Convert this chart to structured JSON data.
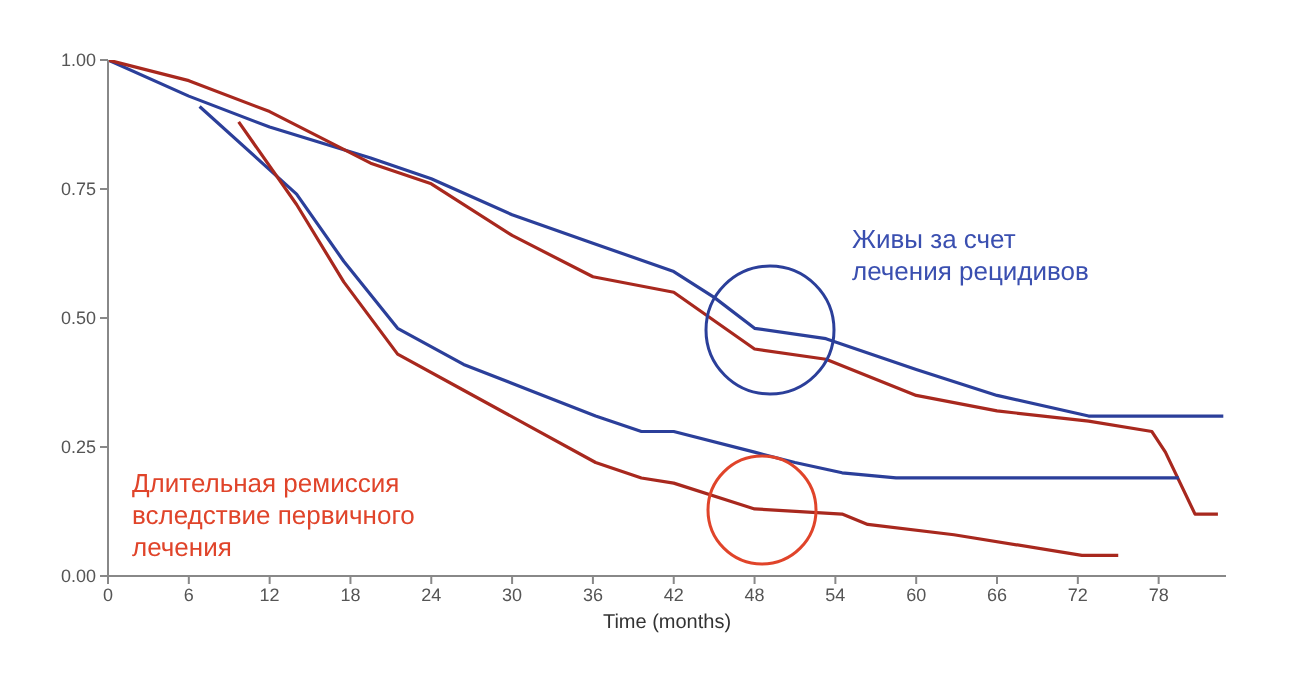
{
  "chart_data": {
    "type": "line",
    "xlabel": "Time (months)",
    "annotations": [
      "Живы за счет лечения рецидивов",
      "Длительная ремиссия вследствие первичного лечения"
    ],
    "xlim": [
      0,
      83
    ],
    "xticks": [
      0,
      6,
      12,
      18,
      24,
      30,
      36,
      42,
      48,
      54,
      60,
      66,
      72,
      78
    ],
    "ylim": [
      0,
      1
    ],
    "yticks": [
      {
        "value": 0,
        "label": "0.00"
      },
      {
        "value": 0.25,
        "label": "0.25"
      },
      {
        "value": 0.5,
        "label": "0.50"
      },
      {
        "value": 0.75,
        "label": "0.75"
      },
      {
        "value": 1,
        "label": "1.00"
      }
    ],
    "grid": false,
    "series": [
      {
        "color": "#2b3f9a",
        "x": [
          0,
          6,
          12,
          19.5,
          24,
          30,
          36,
          42,
          45,
          48,
          53.3,
          60,
          66,
          72.8,
          82.8
        ],
        "values": [
          1,
          0.93,
          0.87,
          0.81,
          0.77,
          0.7,
          0.645,
          0.59,
          0.54,
          0.48,
          0.46,
          0.4,
          0.35,
          0.31,
          0.31
        ]
      },
      {
        "color": "#a8281e",
        "x": [
          0,
          6,
          12,
          19.5,
          24,
          30,
          36,
          42,
          48,
          53.3,
          60,
          66,
          72.8,
          77.5,
          78.5,
          80.7,
          82.4
        ],
        "values": [
          1,
          0.96,
          0.9,
          0.8,
          0.76,
          0.66,
          0.58,
          0.55,
          0.44,
          0.42,
          0.35,
          0.32,
          0.3,
          0.28,
          0.24,
          0.12,
          0.12
        ]
      },
      {
        "color": "#2b3f9a",
        "x": [
          6.8,
          14,
          17.5,
          21.5,
          26.4,
          31.3,
          36.2,
          39.6,
          42,
          48,
          51,
          54.5,
          58.5,
          79.5
        ],
        "values": [
          0.91,
          0.74,
          0.61,
          0.48,
          0.41,
          0.36,
          0.31,
          0.28,
          0.28,
          0.24,
          0.22,
          0.2,
          0.19,
          0.19
        ]
      },
      {
        "color": "#a8281e",
        "x": [
          9.7,
          14,
          17.5,
          21.5,
          26.4,
          31.3,
          36.2,
          39.6,
          42,
          48,
          54.5,
          56.4,
          62.8,
          72.3,
          75
        ],
        "values": [
          0.88,
          0.72,
          0.57,
          0.43,
          0.36,
          0.29,
          0.22,
          0.19,
          0.18,
          0.13,
          0.12,
          0.1,
          0.08,
          0.04,
          0.04
        ]
      }
    ]
  }
}
